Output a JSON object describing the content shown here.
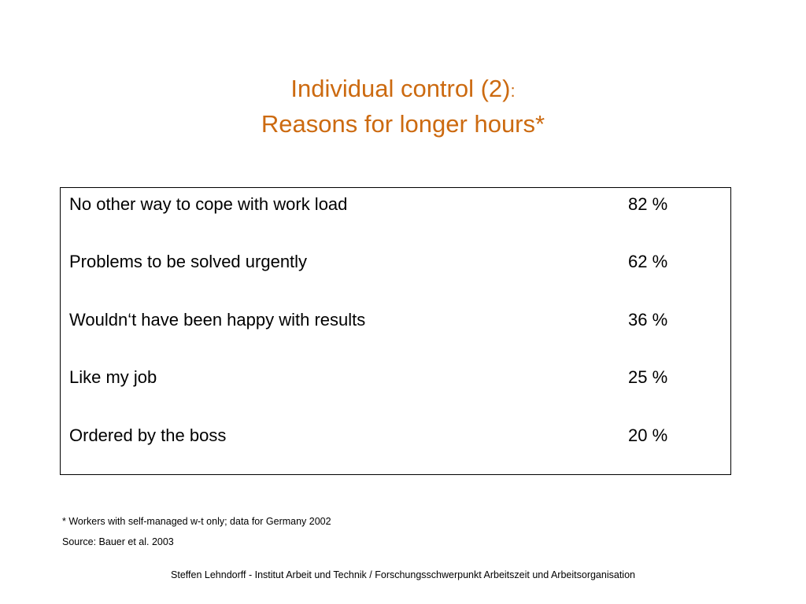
{
  "title": {
    "line1": "Individual control (2)",
    "line1_suffix": ":",
    "line2": "Reasons for longer hours*",
    "color": "#cc6a10"
  },
  "reasons": [
    {
      "label": "No other way to cope with work load",
      "value": "82 %"
    },
    {
      "label": "Problems to be solved urgently",
      "value": "62 %"
    },
    {
      "label": "Wouldn‘t have been happy with results",
      "value": "36 %"
    },
    {
      "label": "Like my job",
      "value": "25 %"
    },
    {
      "label": "Ordered by the boss",
      "value": "20 %"
    }
  ],
  "footnotes": {
    "note": "* Workers with self-managed w-t only; data for Germany 2002",
    "source": "Source: Bauer et al. 2003"
  },
  "footer": {
    "credit": "Steffen Lehndorff - Institut Arbeit und Technik / Forschungsschwerpunkt Arbeitszeit und Arbeitsorganisation"
  }
}
